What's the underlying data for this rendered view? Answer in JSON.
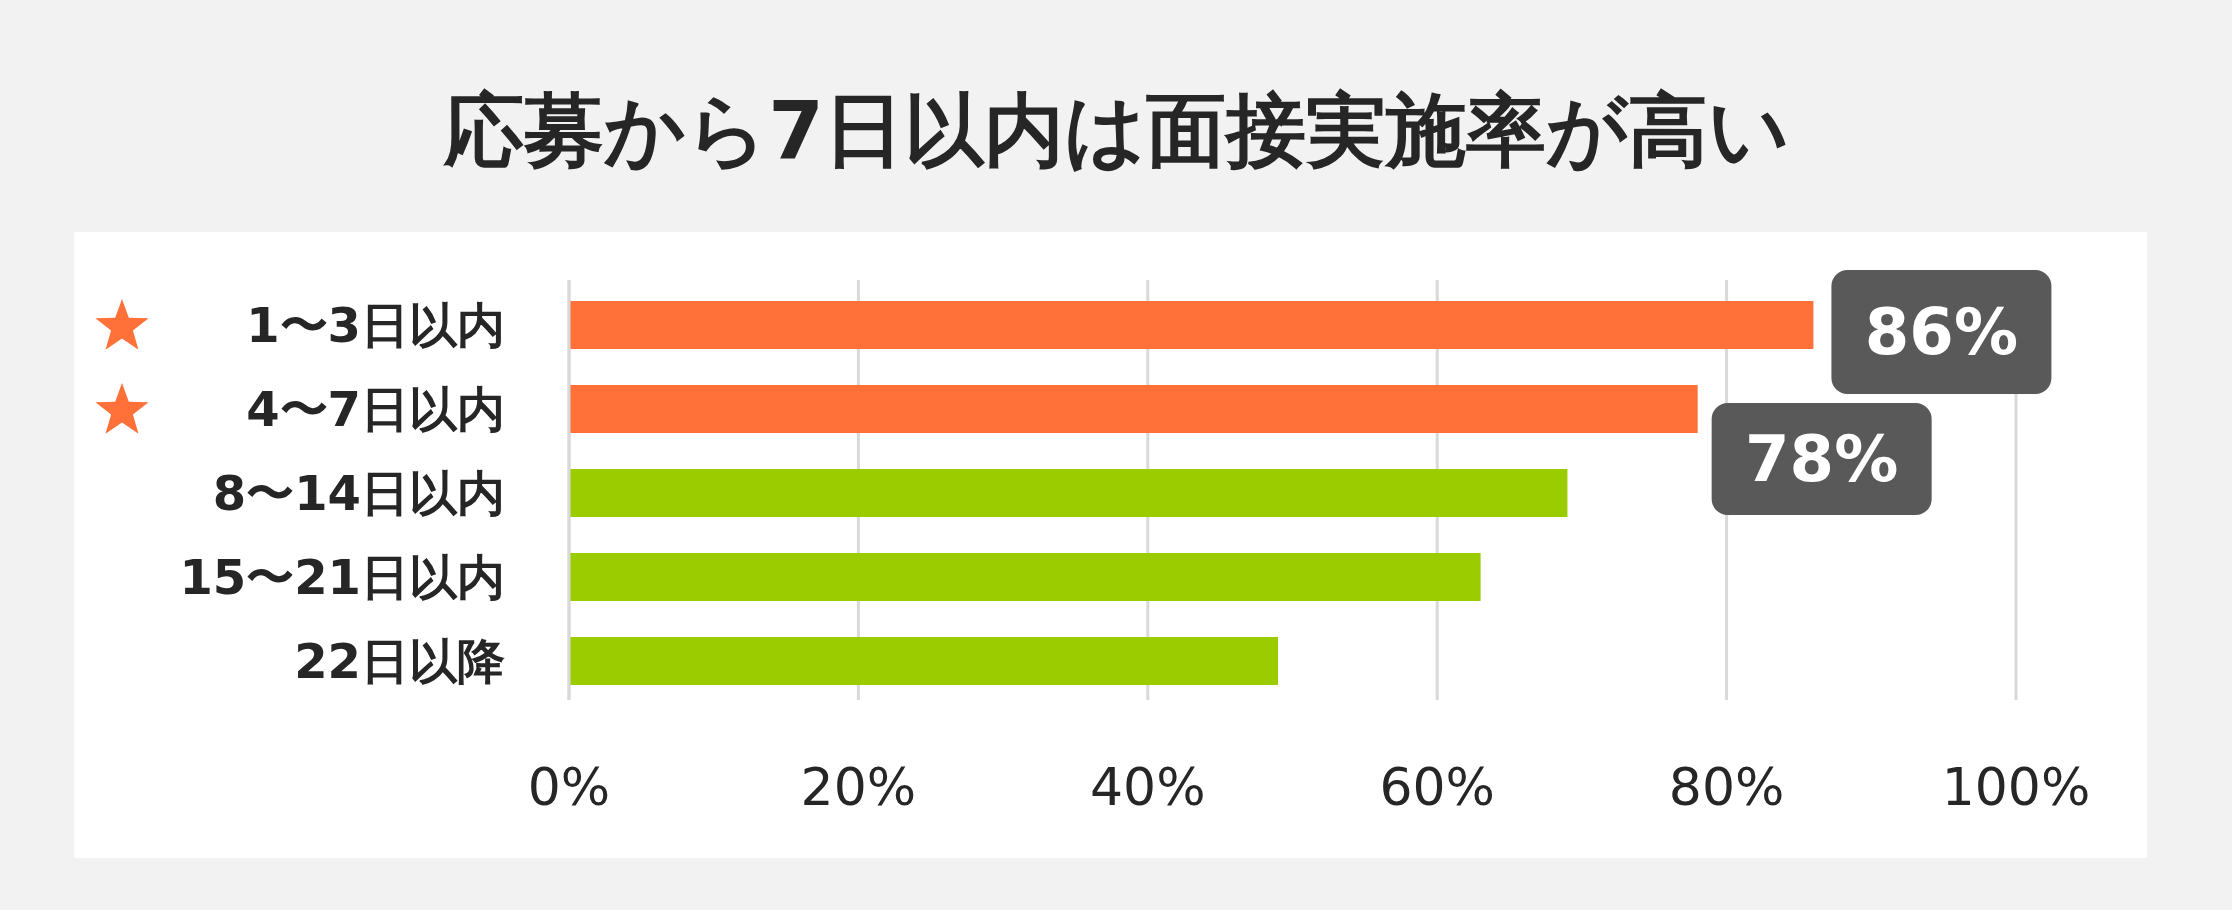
{
  "chart_data": {
    "type": "bar",
    "orientation": "horizontal",
    "title": "応募から7日以内は面接実施率が高い",
    "categories": [
      "1〜3日以内",
      "4〜7日以内",
      "8〜14日以内",
      "15〜21日以内",
      "22日以降"
    ],
    "values": [
      86,
      78,
      69,
      63,
      49
    ],
    "colors": [
      "#ff7139",
      "#ff7139",
      "#9bcc00",
      "#9bcc00",
      "#9bcc00"
    ],
    "value_labels": [
      "86%",
      "78%",
      null,
      null,
      null
    ],
    "xlim": [
      0,
      100
    ],
    "xticks": [
      {
        "value": 0,
        "label": "0%"
      },
      {
        "value": 20,
        "label": "20%"
      },
      {
        "value": 40,
        "label": "40%"
      },
      {
        "value": 60,
        "label": "60%"
      },
      {
        "value": 80,
        "label": "80%"
      },
      {
        "value": 100,
        "label": "100%"
      }
    ],
    "grid": "x"
  }
}
